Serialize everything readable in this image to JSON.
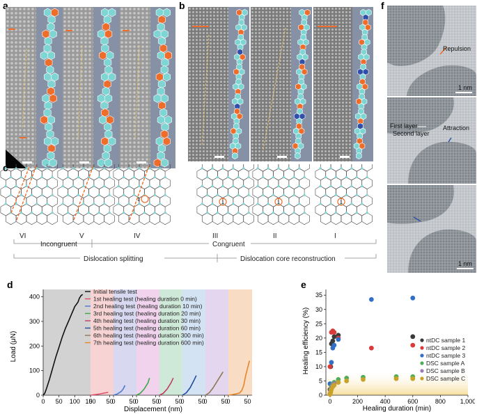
{
  "panels": {
    "a": "a",
    "b": "b",
    "c": "c",
    "d": "d",
    "e": "e",
    "f": "f"
  },
  "panel_c": {
    "structures": [
      "VI",
      "V",
      "IV",
      "III",
      "II",
      "I"
    ],
    "category_left": "Incongruent",
    "category_right": "Congruent",
    "process_left": "Dislocation splitting",
    "process_right": "Dislocation core reconstruction",
    "marker": "1"
  },
  "panel_f": {
    "scale_bar": "1 nm",
    "repulsion": "Repulsion",
    "attraction": "Attraction",
    "first_layer": "First layer",
    "second_layer": "Second layer"
  },
  "colors": {
    "teal": "#7dd6d3",
    "orange": "#ee6d2a",
    "blue": "#2f4fa8",
    "schematic_bg": "#8791a6"
  },
  "chart_data": [
    {
      "type": "line",
      "panel": "d",
      "xlabel": "Displacement (nm)",
      "ylabel": "Load (μN)",
      "ylim": [
        0,
        430
      ],
      "yticks": [
        0,
        100,
        200,
        300,
        400
      ],
      "xtick_labels": [
        "0",
        "50",
        "100",
        "150",
        "0",
        "50",
        "0",
        "50",
        "0",
        "50",
        "0",
        "50",
        "0",
        "50",
        "0",
        "50",
        "0",
        "50"
      ],
      "legend": [
        "Initial tensile test",
        "1st healing test (healing duration 0 min)",
        "2nd healing test (healing duration 10 min)",
        "3rd healing test (healing duration 20 min)",
        "4th healing test (healing duration 30 min)",
        "5th healing test (healing duration 60 min)",
        "6th healing test (healing duration 300 min)",
        "7th healing test (healing duration 600 min)"
      ],
      "series": [
        {
          "name": "Initial tensile test",
          "color": "#111111",
          "band": "#d2d2d2",
          "x": [
            0,
            5,
            10,
            20,
            30,
            40,
            50,
            60,
            70,
            80,
            90,
            95,
            100,
            110,
            115,
            120,
            125
          ],
          "y": [
            0,
            8,
            25,
            65,
            110,
            155,
            195,
            235,
            270,
            300,
            330,
            345,
            360,
            378,
            395,
            405,
            410
          ]
        },
        {
          "name": "1st healing test (healing duration 0 min)",
          "color": "#e0506a",
          "band": "#f8d3d3",
          "x": [
            0,
            10,
            20,
            30,
            40,
            46
          ],
          "y": [
            0,
            2,
            4,
            7,
            10,
            12
          ]
        },
        {
          "name": "2nd healing test (healing duration 10 min)",
          "color": "#4a78c8",
          "band": "#d8d8f1",
          "x": [
            0,
            10,
            20,
            25,
            30
          ],
          "y": [
            0,
            5,
            15,
            25,
            40
          ]
        },
        {
          "name": "3rd healing test (healing duration 20 min)",
          "color": "#3aa847",
          "band": "#f1d3ee",
          "x": [
            0,
            10,
            20,
            30,
            34
          ],
          "y": [
            0,
            8,
            25,
            50,
            70
          ]
        },
        {
          "name": "4th healing test (healing duration 30 min)",
          "color": "#c23a60",
          "band": "#cfe9d8",
          "x": [
            0,
            10,
            20,
            30,
            36
          ],
          "y": [
            0,
            8,
            25,
            50,
            70
          ]
        },
        {
          "name": "5th healing test (healing duration 60 min)",
          "color": "#1f4f9e",
          "band": "#d3e3f3",
          "x": [
            0,
            10,
            20,
            30,
            36
          ],
          "y": [
            0,
            10,
            30,
            60,
            80
          ]
        },
        {
          "name": "6th healing test (healing duration 300 min)",
          "color": "#8a7a55",
          "band": "#e4d6ee",
          "x": [
            0,
            10,
            20,
            30,
            40,
            46
          ],
          "y": [
            0,
            10,
            30,
            55,
            80,
            95
          ]
        },
        {
          "name": "7th healing test (healing duration 600 min)",
          "color": "#e8842a",
          "band": "#f8ddc4",
          "x": [
            0,
            20,
            30,
            35,
            40,
            45,
            50,
            55
          ],
          "y": [
            0,
            5,
            10,
            20,
            40,
            80,
            110,
            140
          ]
        }
      ]
    },
    {
      "type": "scatter",
      "panel": "e",
      "xlabel": "Healing duration (min)",
      "ylabel": "Healing efficiency (%)",
      "xlim": [
        -30,
        1000
      ],
      "ylim": [
        0,
        37
      ],
      "xtick_labels": [
        "0",
        "200",
        "400",
        "600",
        "800",
        "1,000"
      ],
      "ytick_labels": [
        "0",
        "5",
        "10",
        "15",
        "20",
        "25",
        "30",
        "35"
      ],
      "series": [
        {
          "name": "ntDC sample 1",
          "color": "#3a3a3a",
          "x": [
            0,
            5,
            10,
            20,
            30,
            60,
            600
          ],
          "y": [
            2,
            10,
            18,
            19,
            20.5,
            21,
            20.5
          ]
        },
        {
          "name": "ntDC sample 2",
          "color": "#d93b3b",
          "x": [
            0,
            10,
            20,
            30,
            60,
            300,
            600
          ],
          "y": [
            10,
            22,
            22.5,
            22,
            20,
            16.5,
            17.5
          ]
        },
        {
          "name": "ntDC sample 3",
          "color": "#3270c8",
          "x": [
            0,
            10,
            20,
            30,
            60,
            300,
            600
          ],
          "y": [
            4,
            11.5,
            16.5,
            17.5,
            19.5,
            33.5,
            34
          ]
        },
        {
          "name": "DSC sample A",
          "color": "#4fae5c",
          "x": [
            0,
            5,
            10,
            20,
            30,
            60,
            120,
            240,
            480,
            600
          ],
          "y": [
            0.5,
            2,
            3,
            4,
            4.5,
            5.5,
            6,
            6.3,
            6.5,
            6.5
          ]
        },
        {
          "name": "DSC sample B",
          "color": "#9b7bb8",
          "x": [
            0,
            5,
            10,
            20,
            30,
            60
          ],
          "y": [
            0.5,
            1.5,
            2.5,
            3.5,
            4,
            4.5
          ]
        },
        {
          "name": "DSC sample C",
          "color": "#c9a22a",
          "x": [
            0,
            5,
            10,
            20,
            30,
            60,
            120,
            240,
            480,
            600
          ],
          "y": [
            0.3,
            1,
            2,
            3,
            3.5,
            4.5,
            5,
            5.5,
            5.8,
            5.8
          ]
        }
      ]
    }
  ]
}
